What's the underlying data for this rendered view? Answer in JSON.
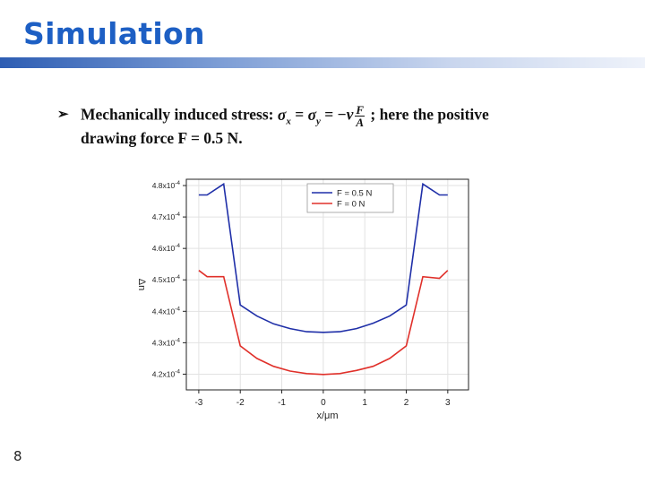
{
  "slide": {
    "title": "Simulation",
    "page_number": "8",
    "bullet": {
      "marker": "➢",
      "text_a": "Mechanically induced stress: ",
      "sigma_x": "σ",
      "sub_x": "x",
      "eq1": " = ",
      "sigma_y": "σ",
      "sub_y": "y",
      "eq2": " = −",
      "nu": "ν",
      "frac_num": "F",
      "frac_den": "A",
      "text_b": " ; here the positive",
      "line2": "drawing force F = 0.5 N."
    },
    "colors": {
      "title": "#1d5fc4",
      "accent_bar": "#2d5db3",
      "series_blue": "#1f2fa8",
      "series_red": "#e0302a"
    }
  },
  "chart_data": {
    "type": "line",
    "xlabel": "x/μm",
    "ylabel": "Δn",
    "xlim": [
      -3.3,
      3.5
    ],
    "ylim": [
      0.000415,
      0.000482
    ],
    "xticks": [
      -3,
      -2,
      -1,
      0,
      1,
      2,
      3
    ],
    "yticks": [
      {
        "value": 0.00042,
        "mantissa": "4.2x10",
        "exp": "-4"
      },
      {
        "value": 0.00043,
        "mantissa": "4.3x10",
        "exp": "-4"
      },
      {
        "value": 0.00044,
        "mantissa": "4.4x10",
        "exp": "-4"
      },
      {
        "value": 0.00045,
        "mantissa": "4.5x10",
        "exp": "-4"
      },
      {
        "value": 0.00046,
        "mantissa": "4.6x10",
        "exp": "-4"
      },
      {
        "value": 0.00047,
        "mantissa": "4.7x10",
        "exp": "-4"
      },
      {
        "value": 0.00048,
        "mantissa": "4.8x10",
        "exp": "-4"
      }
    ],
    "grid": true,
    "legend_position": "top-right",
    "series": [
      {
        "name": "F = 0.5 N",
        "color": "#1f2fa8",
        "x": [
          -3.0,
          -2.8,
          -2.4,
          -2.0,
          -1.6,
          -1.2,
          -0.8,
          -0.4,
          0.0,
          0.4,
          0.8,
          1.2,
          1.6,
          2.0,
          2.4,
          2.8,
          3.0
        ],
        "y": [
          0.000477,
          0.000477,
          0.0004805,
          0.000442,
          0.0004385,
          0.000436,
          0.0004345,
          0.0004335,
          0.0004333,
          0.0004335,
          0.0004345,
          0.0004362,
          0.0004385,
          0.000442,
          0.0004805,
          0.000477,
          0.000477
        ]
      },
      {
        "name": "F = 0 N",
        "color": "#e0302a",
        "x": [
          -3.0,
          -2.8,
          -2.4,
          -2.0,
          -1.6,
          -1.2,
          -0.8,
          -0.4,
          0.0,
          0.4,
          0.8,
          1.2,
          1.6,
          2.0,
          2.4,
          2.8,
          3.0
        ],
        "y": [
          0.000453,
          0.000451,
          0.000451,
          0.000429,
          0.000425,
          0.0004225,
          0.000421,
          0.0004202,
          0.0004199,
          0.0004202,
          0.0004212,
          0.0004225,
          0.000425,
          0.000429,
          0.000451,
          0.0004505,
          0.000453
        ]
      }
    ]
  }
}
